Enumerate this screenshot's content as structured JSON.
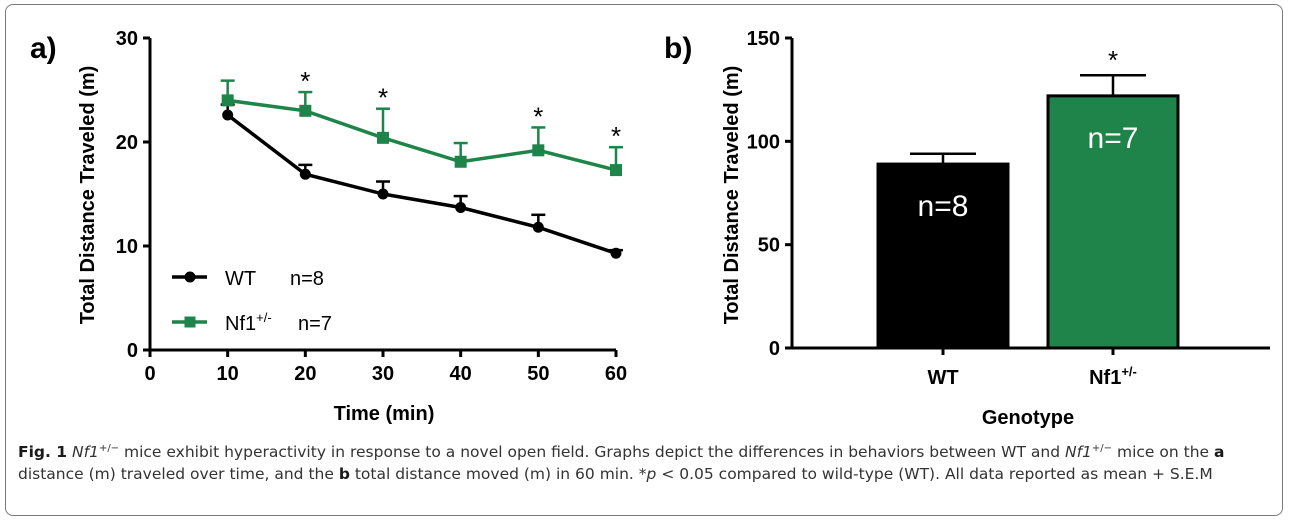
{
  "colors": {
    "wt": "#000000",
    "nf1": "#1e8449",
    "axis": "#000000"
  },
  "chart_data": [
    {
      "type": "line",
      "panel_label": "a)",
      "xlabel": "Time (min)",
      "ylabel": "Total Distance Traveled (m)",
      "xlim": [
        0,
        60
      ],
      "ylim": [
        0,
        30
      ],
      "xticks": [
        0,
        10,
        20,
        30,
        40,
        50,
        60
      ],
      "yticks": [
        0,
        10,
        20,
        30
      ],
      "x": [
        10,
        20,
        30,
        40,
        50,
        60
      ],
      "series": [
        {
          "name": "WT",
          "n_label": "n=8",
          "values": [
            22.6,
            16.9,
            15.0,
            13.7,
            11.8,
            9.3
          ],
          "error": [
            1.0,
            0.9,
            1.2,
            1.1,
            1.2,
            0.3
          ]
        },
        {
          "name": "Nf1",
          "sup": "+/-",
          "n_label": "n=7",
          "values": [
            24.0,
            23.0,
            20.4,
            18.1,
            19.2,
            17.3
          ],
          "error": [
            1.9,
            1.8,
            2.8,
            1.8,
            2.2,
            2.2
          ]
        }
      ],
      "significance": {
        "marker": "*",
        "x": [
          20,
          30,
          50,
          60
        ]
      },
      "legend_position": "bottom-left"
    },
    {
      "type": "bar",
      "panel_label": "b)",
      "xlabel": "Genotype",
      "ylabel": "Total Distance Traveled (m)",
      "ylim": [
        0,
        150
      ],
      "yticks": [
        0,
        50,
        100,
        150
      ],
      "categories": [
        {
          "name": "WT",
          "sup": ""
        },
        {
          "name": "Nf1",
          "sup": "+/-"
        }
      ],
      "values": [
        89,
        122
      ],
      "error": [
        5,
        10
      ],
      "bar_labels": [
        "n=8",
        "n=7"
      ],
      "significance": {
        "marker": "*",
        "bar_index": 1
      }
    }
  ],
  "caption": {
    "fig_label": "Fig. 1",
    "title_gene": "Nf1",
    "title_sup": "+/−",
    "title_rest": " mice exhibit hyperactivity in response to a novel open field. Graphs depict the differences in behaviors between WT and ",
    "gene2": "Nf1",
    "gene2_sup": "+/−",
    "text2": " mice on the ",
    "a_label": "a",
    "text3": " distance (m) traveled over time, and the ",
    "b_label": "b",
    "text4": " total distance moved (m) in 60 min. *",
    "p_italic": "p",
    "text5": " < 0.05 compared to wild-type (WT). All data reported as mean + S.E.M"
  }
}
